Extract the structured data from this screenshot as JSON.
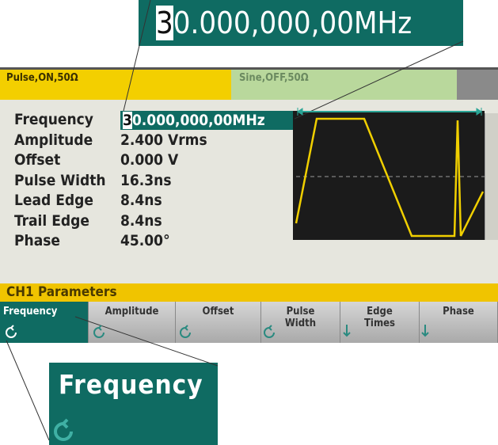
{
  "callout": {
    "cursor": "3",
    "rest": "0.000,000,00MHz"
  },
  "tabs": [
    "Pulse,ON,50Ω",
    "Sine,OFF,50Ω"
  ],
  "parameters": [
    {
      "label": "Frequency",
      "cursor": "3",
      "value": "0.000,000,00MHz"
    },
    {
      "label": "Amplitude",
      "value": "2.400 Vrms"
    },
    {
      "label": "Offset",
      "value": "0.000 V"
    },
    {
      "label": "Pulse Width",
      "value": "16.3ns"
    },
    {
      "label": "Lead Edge",
      "value": "8.4ns"
    },
    {
      "label": "Trail Edge",
      "value": "8.4ns"
    },
    {
      "label": "Phase",
      "value": "45.00°"
    }
  ],
  "status": "CH1 Parameters",
  "softkeys": [
    [
      "Frequency"
    ],
    [
      "Amplitude"
    ],
    [
      "Offset"
    ],
    [
      "Pulse",
      "Width"
    ],
    [
      "Edge",
      "Times"
    ],
    [
      "Phase"
    ]
  ],
  "zoom": {
    "label": "Frequency"
  }
}
